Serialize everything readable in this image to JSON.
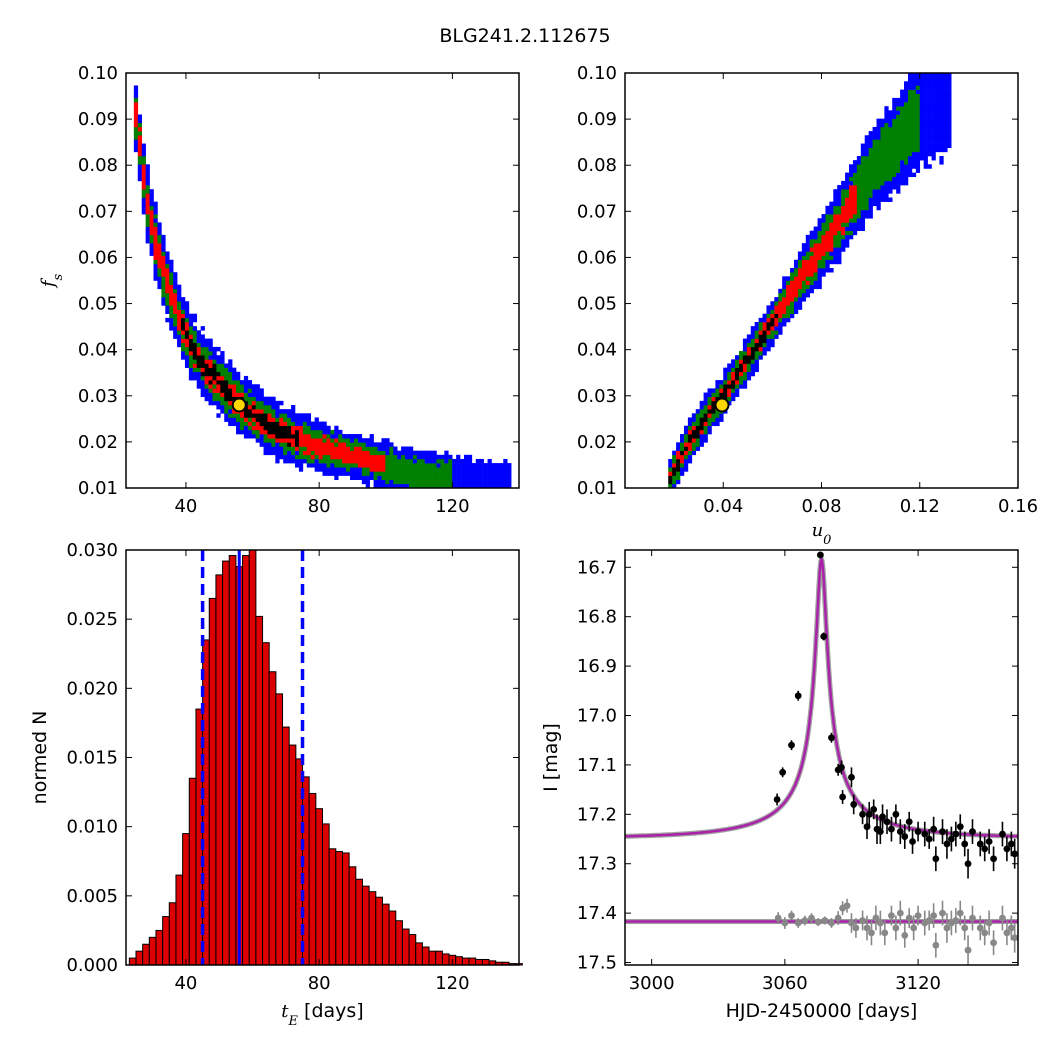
{
  "figure_title": "BLG241.2.112675",
  "colors": {
    "density_outer": "#0000ff",
    "density_mid": "#008000",
    "density_inner": "#ff0000",
    "density_core": "#000000",
    "best_fit_marker": "#ffd700",
    "histogram_bar": "#dd0000",
    "median_line": "#0000ff",
    "model_curve": "#aa22aa",
    "data_points": "#000000",
    "residual_points": "#888888"
  },
  "chart_data": [
    {
      "id": "tE-fs",
      "type": "heatmap",
      "xlabel": "",
      "ylabel": "f_s",
      "xlim": [
        22,
        140
      ],
      "ylim": [
        0.01,
        0.1
      ],
      "xticks": [
        40,
        80,
        120
      ],
      "yticks": [
        0.01,
        0.02,
        0.03,
        0.04,
        0.05,
        0.06,
        0.07,
        0.08,
        0.09,
        0.1
      ],
      "ytick_labels": [
        "0.01",
        "0.02",
        "0.03",
        "0.04",
        "0.05",
        "0.06",
        "0.07",
        "0.08",
        "0.09",
        "0.10"
      ],
      "best_fit": {
        "x": 56,
        "y": 0.028
      },
      "ridge": [
        [
          24,
          0.095
        ],
        [
          26,
          0.085
        ],
        [
          28,
          0.074
        ],
        [
          30,
          0.066
        ],
        [
          32,
          0.06
        ],
        [
          35,
          0.053
        ],
        [
          38,
          0.047
        ],
        [
          42,
          0.04
        ],
        [
          46,
          0.036
        ],
        [
          50,
          0.033
        ],
        [
          55,
          0.029
        ],
        [
          60,
          0.026
        ],
        [
          66,
          0.023
        ],
        [
          72,
          0.021
        ],
        [
          80,
          0.019
        ],
        [
          90,
          0.017
        ],
        [
          100,
          0.015
        ],
        [
          110,
          0.013
        ],
        [
          120,
          0.012
        ],
        [
          130,
          0.011
        ],
        [
          138,
          0.01
        ]
      ]
    },
    {
      "id": "u0-fs",
      "type": "heatmap",
      "xlabel": "u_0",
      "ylabel": "",
      "xlim": [
        0.0,
        0.16
      ],
      "ylim": [
        0.01,
        0.1
      ],
      "xticks": [
        0.04,
        0.08,
        0.12,
        0.16
      ],
      "xtick_labels": [
        "0.04",
        "0.08",
        "0.12",
        "0.16"
      ],
      "yticks": [
        0.01,
        0.02,
        0.03,
        0.04,
        0.05,
        0.06,
        0.07,
        0.08,
        0.09,
        0.1
      ],
      "ytick_labels": [
        "0.01",
        "0.02",
        "0.03",
        "0.04",
        "0.05",
        "0.06",
        "0.07",
        "0.08",
        "0.09",
        "0.10"
      ],
      "best_fit": {
        "x": 0.0395,
        "y": 0.028
      },
      "ridge": [
        [
          0.017,
          0.01
        ],
        [
          0.02,
          0.014
        ],
        [
          0.025,
          0.019
        ],
        [
          0.03,
          0.023
        ],
        [
          0.035,
          0.027
        ],
        [
          0.04,
          0.03
        ],
        [
          0.045,
          0.034
        ],
        [
          0.05,
          0.038
        ],
        [
          0.055,
          0.042
        ],
        [
          0.06,
          0.046
        ],
        [
          0.065,
          0.05
        ],
        [
          0.07,
          0.054
        ],
        [
          0.075,
          0.058
        ],
        [
          0.08,
          0.062
        ],
        [
          0.085,
          0.066
        ],
        [
          0.09,
          0.07
        ],
        [
          0.095,
          0.074
        ],
        [
          0.1,
          0.078
        ],
        [
          0.108,
          0.083
        ],
        [
          0.115,
          0.088
        ],
        [
          0.122,
          0.092
        ],
        [
          0.132,
          0.095
        ]
      ]
    },
    {
      "id": "tE-hist",
      "type": "bar",
      "xlabel": "t_E [days]",
      "ylabel": "normed N",
      "xlim": [
        22,
        140
      ],
      "ylim": [
        0,
        0.03
      ],
      "xticks": [
        40,
        80,
        120
      ],
      "yticks": [
        0,
        0.005,
        0.01,
        0.015,
        0.02,
        0.025,
        0.03
      ],
      "ytick_labels": [
        "0.000",
        "0.005",
        "0.010",
        "0.015",
        "0.020",
        "0.025",
        "0.030"
      ],
      "bin_width": 2,
      "bin_start": 23,
      "values": [
        0.0005,
        0.001,
        0.0015,
        0.002,
        0.0025,
        0.0035,
        0.0045,
        0.0065,
        0.0095,
        0.0135,
        0.0185,
        0.0235,
        0.0265,
        0.0282,
        0.0292,
        0.0296,
        0.0288,
        0.0296,
        0.0305,
        0.0252,
        0.0233,
        0.0212,
        0.0196,
        0.0172,
        0.0159,
        0.0149,
        0.0136,
        0.0124,
        0.0113,
        0.0102,
        0.0084,
        0.0082,
        0.0081,
        0.0071,
        0.0062,
        0.0057,
        0.0053,
        0.0049,
        0.0044,
        0.0039,
        0.0032,
        0.0026,
        0.0022,
        0.0016,
        0.0013,
        0.001,
        0.001,
        0.0008,
        0.0007,
        0.0006,
        0.0005,
        0.0005,
        0.0004,
        0.0004,
        0.0003,
        0.0002,
        0.0002,
        0.0001,
        0.0001
      ],
      "median": 56,
      "interval": [
        45,
        75
      ]
    },
    {
      "id": "lightcurve",
      "type": "scatter",
      "xlabel": "HJD-2450000 [days]",
      "ylabel": "I [mag]",
      "xlim": [
        2988,
        3165
      ],
      "ylim": [
        17.505,
        16.665
      ],
      "xticks": [
        3000,
        3060,
        3120
      ],
      "yticks": [
        16.7,
        16.8,
        16.9,
        17.0,
        17.1,
        17.2,
        17.3,
        17.4,
        17.5
      ],
      "ytick_labels": [
        "16.7",
        "16.8",
        "16.9",
        "17.0",
        "17.1",
        "17.2",
        "17.3",
        "17.4",
        "17.5"
      ],
      "model": {
        "t0": 3076.5,
        "tE": 56,
        "u0": 0.0395,
        "fs": 0.028,
        "baseline": 17.248
      },
      "residual_baseline": 17.417,
      "data": [
        [
          3056.5,
          17.17,
          0.012
        ],
        [
          3059.0,
          17.115,
          0.01
        ],
        [
          3063.0,
          17.06,
          0.01
        ],
        [
          3066.0,
          16.96,
          0.01
        ],
        [
          3076.0,
          16.675,
          0.005
        ],
        [
          3077.5,
          16.84,
          0.008
        ],
        [
          3081.0,
          17.045,
          0.01
        ],
        [
          3084.0,
          17.11,
          0.012
        ],
        [
          3085.5,
          17.105,
          0.014
        ],
        [
          3086.0,
          17.165,
          0.014
        ],
        [
          3090.0,
          17.125,
          0.02
        ],
        [
          3091.0,
          17.18,
          0.02
        ],
        [
          3095.0,
          17.2,
          0.02
        ],
        [
          3097.0,
          17.225,
          0.025
        ],
        [
          3098.0,
          17.2,
          0.025
        ],
        [
          3100.0,
          17.19,
          0.02
        ],
        [
          3101.5,
          17.23,
          0.03
        ],
        [
          3103.0,
          17.235,
          0.025
        ],
        [
          3104.0,
          17.205,
          0.025
        ],
        [
          3106.0,
          17.215,
          0.025
        ],
        [
          3108.0,
          17.23,
          0.025
        ],
        [
          3110.0,
          17.2,
          0.02
        ],
        [
          3112.0,
          17.235,
          0.025
        ],
        [
          3114.0,
          17.245,
          0.025
        ],
        [
          3116.0,
          17.215,
          0.02
        ],
        [
          3117.5,
          17.255,
          0.025
        ],
        [
          3120.0,
          17.235,
          0.02
        ],
        [
          3123.0,
          17.24,
          0.025
        ],
        [
          3125.0,
          17.25,
          0.02
        ],
        [
          3127.0,
          17.23,
          0.025
        ],
        [
          3128.0,
          17.29,
          0.025
        ],
        [
          3131.0,
          17.235,
          0.025
        ],
        [
          3133.0,
          17.26,
          0.03
        ],
        [
          3135.0,
          17.25,
          0.025
        ],
        [
          3137.0,
          17.24,
          0.025
        ],
        [
          3139.0,
          17.225,
          0.025
        ],
        [
          3141.0,
          17.26,
          0.025
        ],
        [
          3142.5,
          17.3,
          0.03
        ],
        [
          3144.5,
          17.235,
          0.025
        ],
        [
          3148.0,
          17.26,
          0.025
        ],
        [
          3150.0,
          17.27,
          0.025
        ],
        [
          3152.0,
          17.255,
          0.025
        ],
        [
          3154.0,
          17.29,
          0.025
        ],
        [
          3158.0,
          17.24,
          0.025
        ],
        [
          3160.0,
          17.27,
          0.025
        ],
        [
          3162.0,
          17.26,
          0.025
        ],
        [
          3163.5,
          17.28,
          0.03
        ]
      ],
      "residuals": [
        [
          3057,
          17.41,
          0.012
        ],
        [
          3060,
          17.42,
          0.012
        ],
        [
          3063,
          17.405,
          0.01
        ],
        [
          3066,
          17.42,
          0.01
        ],
        [
          3069,
          17.415,
          0.01
        ],
        [
          3072,
          17.41,
          0.01
        ],
        [
          3075,
          17.418,
          0.008
        ],
        [
          3078,
          17.415,
          0.008
        ],
        [
          3081,
          17.42,
          0.01
        ],
        [
          3084,
          17.41,
          0.014
        ],
        [
          3086,
          17.39,
          0.014
        ],
        [
          3088,
          17.385,
          0.014
        ],
        [
          3090,
          17.42,
          0.02
        ],
        [
          3092,
          17.43,
          0.02
        ],
        [
          3095,
          17.415,
          0.02
        ],
        [
          3097,
          17.43,
          0.025
        ],
        [
          3099,
          17.44,
          0.025
        ],
        [
          3101,
          17.41,
          0.025
        ],
        [
          3103,
          17.42,
          0.025
        ],
        [
          3105,
          17.44,
          0.025
        ],
        [
          3108,
          17.405,
          0.02
        ],
        [
          3110,
          17.43,
          0.025
        ],
        [
          3112,
          17.4,
          0.025
        ],
        [
          3114,
          17.445,
          0.025
        ],
        [
          3116,
          17.41,
          0.02
        ],
        [
          3118,
          17.43,
          0.025
        ],
        [
          3120,
          17.405,
          0.02
        ],
        [
          3123,
          17.42,
          0.025
        ],
        [
          3125,
          17.415,
          0.02
        ],
        [
          3127,
          17.405,
          0.025
        ],
        [
          3128,
          17.465,
          0.025
        ],
        [
          3131,
          17.4,
          0.025
        ],
        [
          3133,
          17.43,
          0.03
        ],
        [
          3135,
          17.42,
          0.025
        ],
        [
          3137,
          17.415,
          0.025
        ],
        [
          3139,
          17.4,
          0.025
        ],
        [
          3141,
          17.43,
          0.025
        ],
        [
          3142.5,
          17.475,
          0.03
        ],
        [
          3144.5,
          17.41,
          0.025
        ],
        [
          3148,
          17.43,
          0.025
        ],
        [
          3150,
          17.44,
          0.025
        ],
        [
          3152,
          17.42,
          0.025
        ],
        [
          3154,
          17.46,
          0.025
        ],
        [
          3158,
          17.41,
          0.025
        ],
        [
          3160,
          17.44,
          0.025
        ],
        [
          3162,
          17.43,
          0.025
        ],
        [
          3163.5,
          17.45,
          0.03
        ]
      ]
    }
  ]
}
